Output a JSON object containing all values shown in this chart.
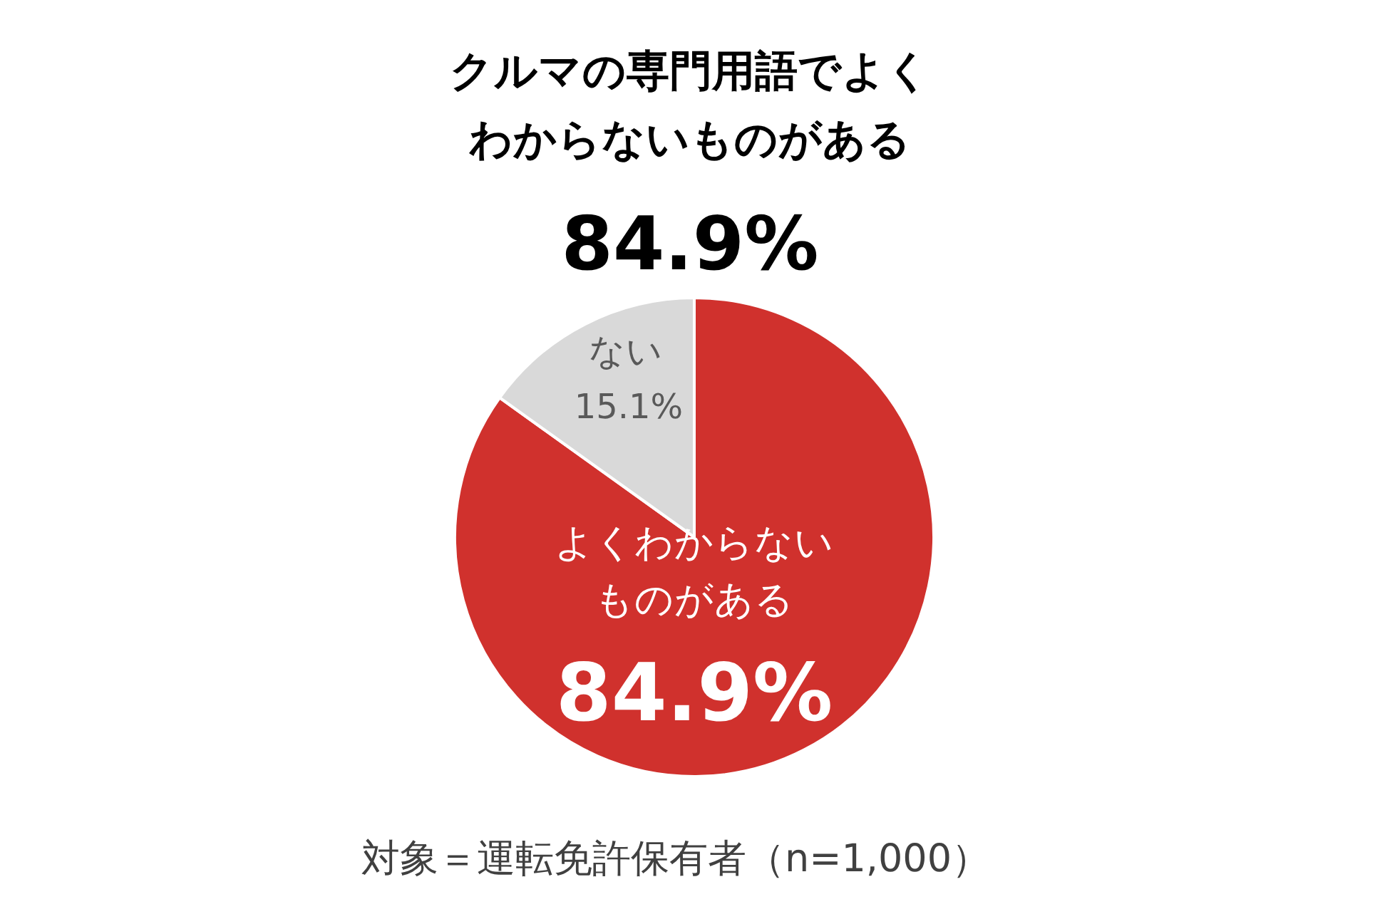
{
  "chart_data": {
    "type": "pie",
    "title": "クルマの専門用語でよくわからないものがある",
    "subtitle": "84.9%",
    "categories": [
      "よくわからないものがある",
      "ない"
    ],
    "values": [
      84.9,
      15.1
    ],
    "value_labels": [
      "84.9%",
      "15.1%"
    ],
    "colors": [
      "#d0312d",
      "#d9d9d9"
    ],
    "annotations": [
      "対象＝運転免許保有者（n=1,000）"
    ]
  }
}
